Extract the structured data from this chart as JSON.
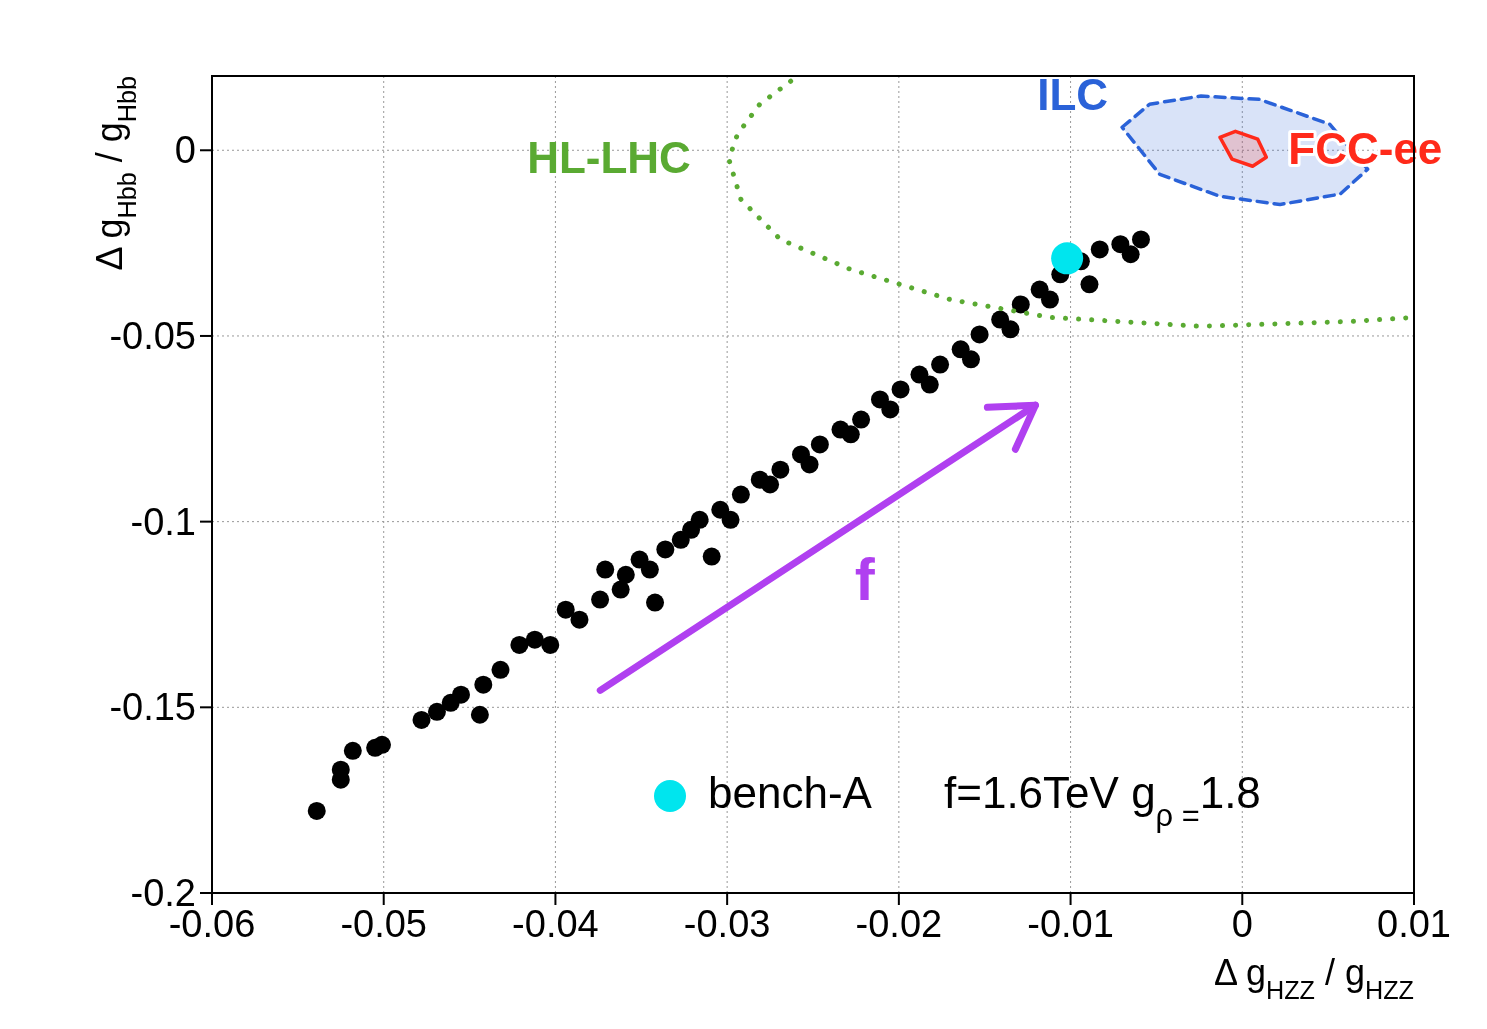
{
  "chart_data": {
    "type": "scatter",
    "xlabel": "Δ g$_{HZZ}$ / g$_{HZZ}$",
    "ylabel": "Δ g$_{Hbb}$ / g$_{Hbb}$",
    "xlim": [
      -0.06,
      0.01
    ],
    "ylim": [
      -0.2,
      0.02
    ],
    "xticks": [
      -0.06,
      -0.05,
      -0.04,
      -0.03,
      -0.02,
      -0.01,
      0,
      0.01
    ],
    "yticks": [
      -0.2,
      -0.15,
      -0.1,
      -0.05,
      0
    ],
    "grid": true,
    "legend": "bottom right",
    "annotations": [
      "f",
      "f=1.6TeV   g$_{ρ =}$1.8"
    ],
    "series": [
      {
        "color": "#000000",
        "marker": "circle",
        "x": [
          -0.0539,
          -0.0525,
          -0.0525,
          -0.0518,
          -0.0505,
          -0.0501,
          -0.0478,
          -0.0469,
          -0.0461,
          -0.0455,
          -0.0444,
          -0.0442,
          -0.0432,
          -0.0421,
          -0.0412,
          -0.0403,
          -0.0394,
          -0.0386,
          -0.0374,
          -0.0371,
          -0.0359,
          -0.0351,
          -0.0342,
          -0.0336,
          -0.0327,
          -0.0316,
          -0.0309,
          -0.0304,
          -0.0292,
          -0.0281,
          -0.0269,
          -0.0257,
          -0.0246,
          -0.0234,
          -0.0222,
          -0.0211,
          -0.0199,
          -0.0188,
          -0.0176,
          -0.0164,
          -0.0153,
          -0.0141,
          -0.0129,
          -0.0118,
          -0.0106,
          -0.0094,
          -0.0083,
          -0.0071,
          -0.0059,
          -0.0065,
          -0.0089,
          -0.0112,
          -0.0135,
          -0.0158,
          -0.0182,
          -0.0205,
          -0.0228,
          -0.0252,
          -0.0275,
          -0.0298,
          -0.0321,
          -0.0345,
          -0.0362
        ],
        "values": [
          -0.1779,
          -0.1668,
          -0.1695,
          -0.1617,
          -0.1609,
          -0.1601,
          -0.1534,
          -0.1512,
          -0.1488,
          -0.1466,
          -0.152,
          -0.1439,
          -0.1399,
          -0.1332,
          -0.1318,
          -0.1332,
          -0.1237,
          -0.1264,
          -0.121,
          -0.1129,
          -0.1143,
          -0.1102,
          -0.1218,
          -0.1075,
          -0.1049,
          -0.0995,
          -0.1094,
          -0.0968,
          -0.0927,
          -0.0887,
          -0.086,
          -0.0819,
          -0.0792,
          -0.0752,
          -0.0725,
          -0.0671,
          -0.0644,
          -0.0604,
          -0.0577,
          -0.0536,
          -0.0496,
          -0.0456,
          -0.0415,
          -0.0375,
          -0.0334,
          -0.0299,
          -0.0267,
          -0.0253,
          -0.024,
          -0.028,
          -0.0361,
          -0.0402,
          -0.0482,
          -0.0563,
          -0.0631,
          -0.0698,
          -0.0765,
          -0.0846,
          -0.09,
          -0.0995,
          -0.1022,
          -0.1129,
          -0.1183
        ]
      },
      {
        "name": "bench-A",
        "marker": "circle",
        "color": "#00e5ee",
        "x": [
          -0.0102
        ],
        "values": [
          -0.0291
        ]
      },
      {
        "type": "line",
        "name": "HL-LHC",
        "color": "#5aaa32",
        "line_style": "dotted",
        "x": [
          -0.0263,
          -0.0281,
          -0.0294,
          -0.0299,
          -0.0292,
          -0.0269,
          -0.0228,
          -0.017,
          -0.0112,
          -0.0024,
          0.0063,
          0.01
        ],
        "values": [
          0.0186,
          0.0124,
          0.0043,
          -0.0024,
          -0.0132,
          -0.024,
          -0.0321,
          -0.0402,
          -0.045,
          -0.0474,
          -0.0461,
          -0.045
        ]
      },
      {
        "type": "area",
        "name": "ILC",
        "color": "#2a62d8",
        "line_style": "dashed",
        "x": [
          -0.007,
          -0.0054,
          -0.0024,
          0.001,
          0.0051,
          0.0073,
          0.0057,
          0.0022,
          -0.0013,
          -0.0048,
          -0.007
        ],
        "values": [
          0.0062,
          0.0124,
          0.0146,
          0.0137,
          0.007,
          -0.0051,
          -0.0118,
          -0.0146,
          -0.0124,
          -0.0065,
          0.0062
        ]
      },
      {
        "type": "area",
        "name": "FCC-ee",
        "color": "#ff2a1a",
        "line_style": "solid",
        "x": [
          -0.0013,
          -0.0004,
          0.0009,
          0.0014,
          0.0006,
          -0.0006,
          -0.0013
        ],
        "values": [
          0.0035,
          0.0051,
          0.003,
          -0.0019,
          -0.0043,
          -0.0024,
          0.0035
        ]
      }
    ]
  }
}
